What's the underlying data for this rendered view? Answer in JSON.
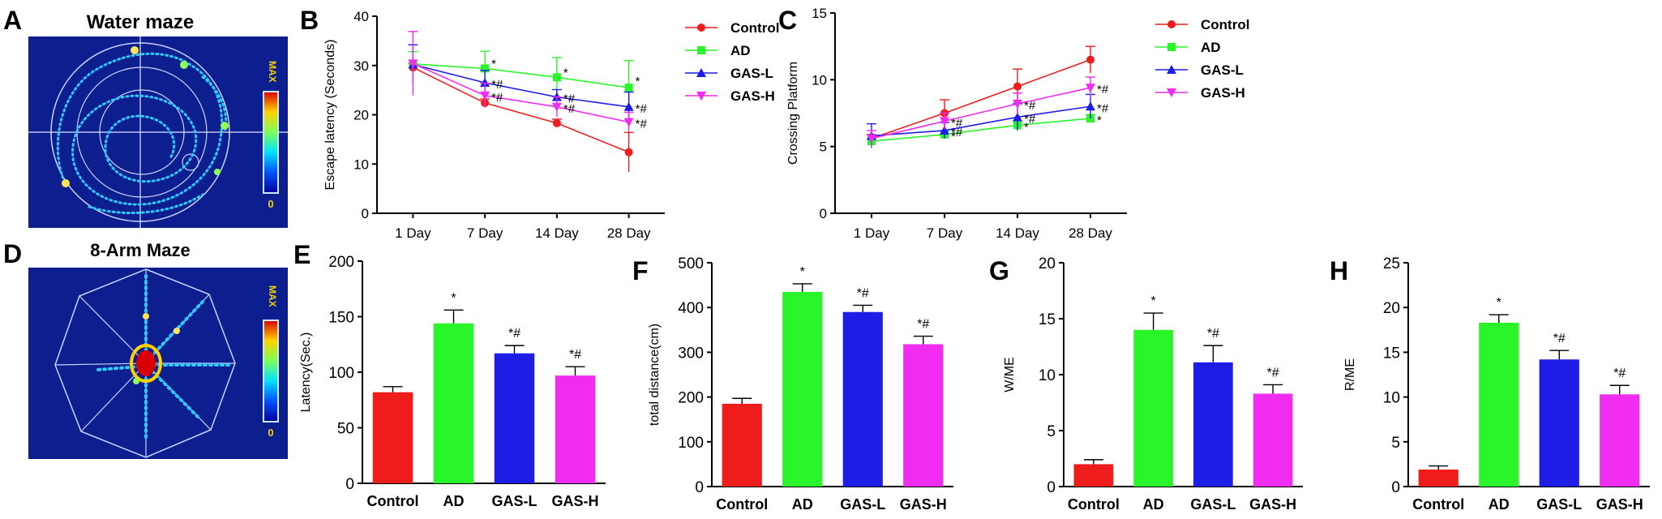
{
  "colors": {
    "Control": "#ef1c1c",
    "AD": "#2af52a",
    "GAS-L": "#1d1de6",
    "GAS-H": "#ef2cef",
    "heat_bg": "#0d1f8e",
    "axis": "#000000"
  },
  "panel_labels": {
    "A": "A",
    "B": "B",
    "C": "C",
    "D": "D",
    "E": "E",
    "F": "F",
    "G": "G",
    "H": "H"
  },
  "heatmaps": {
    "A": {
      "title": "Water maze",
      "scale_max": "MAX",
      "scale_min": "0"
    },
    "D": {
      "title": "8-Arm Maze",
      "scale_max": "MAX",
      "scale_min": "0"
    }
  },
  "chart_data": [
    {
      "id": "B",
      "type": "line",
      "title": "",
      "xlabel": "",
      "ylabel": "Escape latency  (Seconds)",
      "categories": [
        "1 Day",
        "7 Day",
        "14 Day",
        "28 Day"
      ],
      "ylim": [
        0,
        40
      ],
      "yticks": [
        0,
        10,
        20,
        30,
        40
      ],
      "legend": "right",
      "series": [
        {
          "name": "Control",
          "values": [
            29.6,
            22.4,
            18.3,
            12.4
          ],
          "errors": [
            0.8,
            0.8,
            0.8,
            4.0
          ],
          "annotations": [
            "",
            "",
            "",
            ""
          ]
        },
        {
          "name": "AD",
          "values": [
            30.3,
            29.4,
            27.6,
            25.5
          ],
          "errors": [
            2.5,
            3.5,
            4.0,
            5.5
          ],
          "annotations": [
            "",
            "*",
            "*",
            "*"
          ]
        },
        {
          "name": "GAS-L",
          "values": [
            30.2,
            26.5,
            23.6,
            21.6
          ],
          "errors": [
            4.0,
            2.5,
            1.5,
            3.0
          ],
          "annotations": [
            "",
            "*#",
            "*#",
            "*#"
          ]
        },
        {
          "name": "GAS-H",
          "values": [
            30.4,
            23.9,
            21.6,
            18.5
          ],
          "errors": [
            6.5,
            2.5,
            2.0,
            2.0
          ],
          "annotations": [
            "",
            "*#",
            "*#",
            "*#"
          ]
        }
      ]
    },
    {
      "id": "C",
      "type": "line",
      "title": "",
      "xlabel": "",
      "ylabel": "Crossing Platform",
      "categories": [
        "1 Day",
        "7 Day",
        "14 Day",
        "28 Day"
      ],
      "ylim": [
        0,
        15
      ],
      "yticks": [
        0,
        5,
        10,
        15
      ],
      "legend": "right",
      "series": [
        {
          "name": "Control",
          "values": [
            5.6,
            7.5,
            9.5,
            11.5
          ],
          "errors": [
            0.3,
            1.0,
            1.3,
            1.0
          ],
          "annotations": [
            "",
            "",
            "",
            ""
          ]
        },
        {
          "name": "AD",
          "values": [
            5.4,
            5.9,
            6.6,
            7.1
          ],
          "errors": [
            0.2,
            0.3,
            0.3,
            0.3
          ],
          "annotations": [
            "",
            "*",
            "*",
            "*"
          ]
        },
        {
          "name": "GAS-L",
          "values": [
            5.8,
            6.2,
            7.2,
            8.0
          ],
          "errors": [
            0.9,
            0.6,
            1.0,
            0.9
          ],
          "annotations": [
            "",
            "*#",
            "*#",
            "*#"
          ]
        },
        {
          "name": "GAS-H",
          "values": [
            5.6,
            6.9,
            8.2,
            9.4
          ],
          "errors": [
            0.6,
            0.6,
            0.8,
            0.8
          ],
          "annotations": [
            "",
            "*#",
            "*#",
            "*#"
          ]
        }
      ]
    },
    {
      "id": "E",
      "type": "bar",
      "title": "",
      "xlabel": "",
      "ylabel": "Latency(Sec.)",
      "categories": [
        "Control",
        "AD",
        "GAS-L",
        "GAS-H"
      ],
      "values": [
        82,
        144,
        117,
        97
      ],
      "errors": [
        5,
        12,
        7,
        8
      ],
      "annotations": [
        "",
        "*",
        "*#",
        "*#"
      ],
      "ylim": [
        0,
        200
      ],
      "yticks": [
        0,
        50,
        100,
        150,
        200
      ]
    },
    {
      "id": "F",
      "type": "bar",
      "title": "",
      "xlabel": "",
      "ylabel": "total distance(cm)",
      "categories": [
        "Control",
        "AD",
        "GAS-L",
        "GAS-H"
      ],
      "values": [
        185,
        435,
        390,
        318
      ],
      "errors": [
        12,
        18,
        15,
        18
      ],
      "annotations": [
        "",
        "*",
        "*#",
        "*#"
      ],
      "ylim": [
        0,
        500
      ],
      "yticks": [
        0,
        100,
        200,
        300,
        400,
        500
      ]
    },
    {
      "id": "G",
      "type": "bar",
      "title": "",
      "xlabel": "",
      "ylabel": "W/ME",
      "categories": [
        "Control",
        "AD",
        "GAS-L",
        "GAS-H"
      ],
      "values": [
        2.0,
        14.0,
        11.1,
        8.3
      ],
      "errors": [
        0.4,
        1.5,
        1.5,
        0.8
      ],
      "annotations": [
        "",
        "*",
        "*#",
        "*#"
      ],
      "ylim": [
        0,
        20
      ],
      "yticks": [
        0,
        5,
        10,
        15,
        20
      ]
    },
    {
      "id": "H",
      "type": "bar",
      "title": "",
      "xlabel": "",
      "ylabel": "R/ME",
      "categories": [
        "Control",
        "AD",
        "GAS-L",
        "GAS-H"
      ],
      "values": [
        1.9,
        18.3,
        14.2,
        10.3
      ],
      "errors": [
        0.4,
        0.9,
        1.0,
        1.0
      ],
      "annotations": [
        "",
        "*",
        "*#",
        "*#"
      ],
      "ylim": [
        0,
        25
      ],
      "yticks": [
        0,
        5,
        10,
        15,
        20,
        25
      ]
    }
  ]
}
